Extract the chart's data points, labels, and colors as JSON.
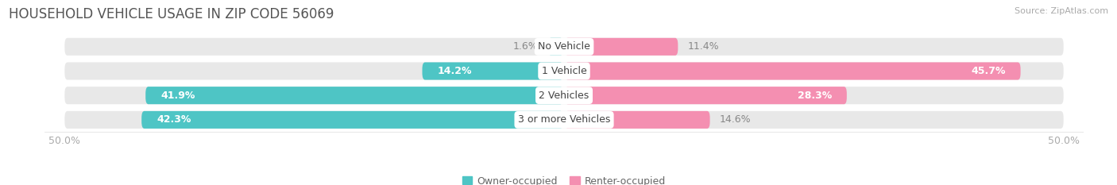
{
  "title": "HOUSEHOLD VEHICLE USAGE IN ZIP CODE 56069",
  "source": "Source: ZipAtlas.com",
  "categories": [
    "No Vehicle",
    "1 Vehicle",
    "2 Vehicles",
    "3 or more Vehicles"
  ],
  "owner_values": [
    1.6,
    14.2,
    41.9,
    42.3
  ],
  "renter_values": [
    11.4,
    45.7,
    28.3,
    14.6
  ],
  "owner_color": "#4ec5c5",
  "renter_color": "#f48fb1",
  "bar_bg_color": "#e8e8e8",
  "owner_label": "Owner-occupied",
  "renter_label": "Renter-occupied",
  "x_max": 50.0,
  "x_min": -50.0,
  "background_color": "#ffffff",
  "bar_height": 0.72,
  "title_fontsize": 12,
  "source_fontsize": 8,
  "label_fontsize": 9,
  "tick_fontsize": 9,
  "category_fontsize": 9,
  "bar_sep": 0.18
}
